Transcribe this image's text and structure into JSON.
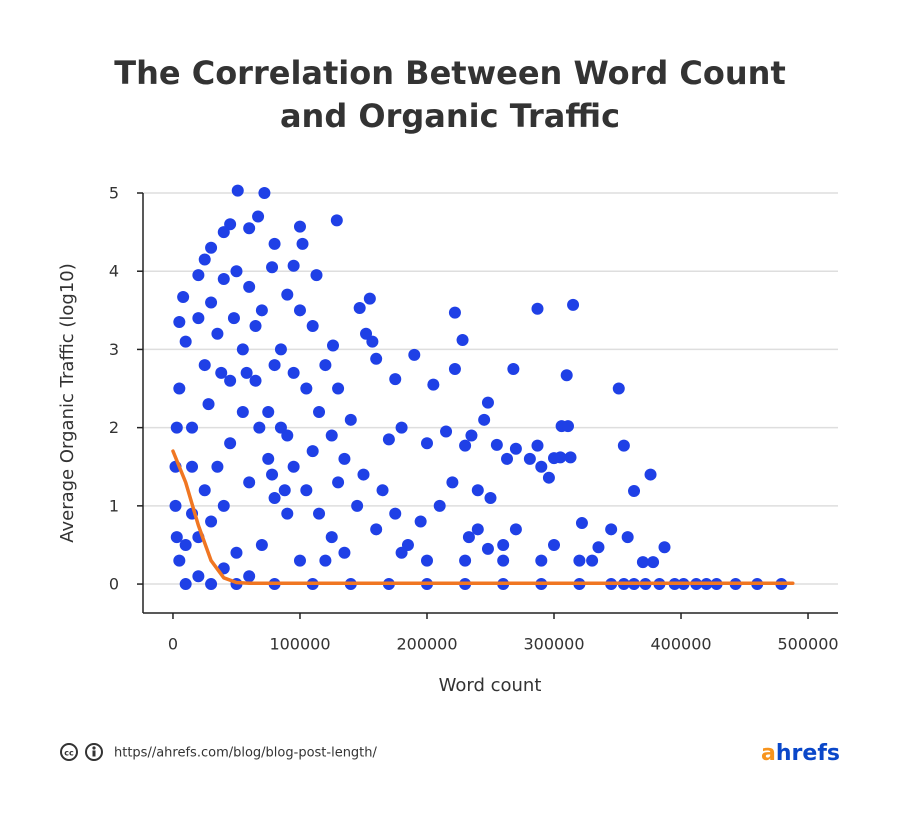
{
  "chart_data": {
    "type": "scatter",
    "title": [
      "The Correlation Between Word Count",
      "and Organic Traffic"
    ],
    "x_label": "Word count",
    "y_label": "Average Organic Traffic (log10)",
    "xlim": [
      -23600,
      523600
    ],
    "ylim": [
      -0.37,
      5
    ],
    "xticks": [
      0,
      100000,
      200000,
      300000,
      400000,
      500000
    ],
    "yticks": [
      0,
      1,
      2,
      3,
      4,
      5
    ],
    "grid": true,
    "series": [
      {
        "type": "scatter",
        "color": "#1f40e6",
        "x": [
          51000,
          72000,
          129000,
          67000,
          100000,
          102000,
          80000,
          95000,
          113000,
          78000,
          60000,
          45000,
          40000,
          30000,
          25000,
          20000,
          8000,
          5000,
          147000,
          155000,
          152000,
          157000,
          126000,
          190000,
          160000,
          222000,
          228000,
          287000,
          315000,
          268000,
          310000,
          351000,
          222000,
          205000,
          248000,
          175000,
          245000,
          255000,
          287000,
          306000,
          311000,
          355000,
          376000,
          363000,
          313000,
          305000,
          300000,
          281000,
          290000,
          296000,
          270000,
          263000,
          235000,
          230000,
          215000,
          200000,
          180000,
          170000,
          140000,
          130000,
          120000,
          110000,
          100000,
          90000,
          85000,
          70000,
          60000,
          50000,
          40000,
          30000,
          20000,
          10000,
          5000,
          3000,
          2000,
          2000,
          3000,
          5000,
          250000,
          240000,
          220000,
          210000,
          195000,
          185000,
          175000,
          165000,
          150000,
          135000,
          125000,
          115000,
          105000,
          95000,
          80000,
          65000,
          55000,
          45000,
          35000,
          25000,
          15000,
          10000,
          20000,
          30000,
          40000,
          60000,
          75000,
          90000,
          110000,
          130000,
          145000,
          160000,
          180000,
          200000,
          230000,
          260000,
          290000,
          320000,
          330000,
          260000,
          270000,
          300000,
          322000,
          335000,
          345000,
          358000,
          387000,
          370000,
          378000,
          240000,
          248000,
          233000,
          10000,
          30000,
          50000,
          80000,
          110000,
          140000,
          170000,
          200000,
          230000,
          260000,
          290000,
          320000,
          345000,
          355000,
          363000,
          372000,
          383000,
          395000,
          402000,
          412000,
          420000,
          428000,
          443000,
          460000,
          479000,
          15000,
          25000,
          35000,
          45000,
          55000,
          65000,
          75000,
          85000,
          95000,
          105000,
          115000,
          125000,
          135000,
          100000,
          70000,
          50000,
          40000,
          20000,
          60000,
          90000,
          120000,
          80000,
          15000,
          28000,
          38000,
          48000,
          58000,
          68000,
          78000,
          88000
        ],
        "values": [
          5.03,
          5.0,
          4.65,
          4.7,
          4.57,
          4.35,
          4.35,
          4.07,
          3.95,
          4.05,
          4.55,
          4.6,
          4.5,
          4.3,
          4.15,
          3.95,
          3.67,
          3.35,
          3.53,
          3.65,
          3.2,
          3.1,
          3.05,
          2.93,
          2.88,
          3.47,
          3.12,
          3.52,
          3.57,
          2.75,
          2.67,
          2.5,
          2.75,
          2.55,
          2.32,
          2.62,
          2.1,
          1.78,
          1.77,
          2.02,
          2.02,
          1.77,
          1.4,
          1.19,
          1.62,
          1.62,
          1.61,
          1.6,
          1.5,
          1.36,
          1.73,
          1.6,
          1.9,
          1.77,
          1.95,
          1.8,
          2.0,
          1.85,
          2.1,
          2.5,
          2.8,
          3.3,
          3.5,
          3.7,
          3.0,
          3.5,
          3.8,
          4.0,
          3.9,
          3.6,
          3.4,
          3.1,
          2.5,
          2.0,
          1.5,
          1.0,
          0.6,
          0.3,
          1.1,
          1.2,
          1.3,
          1.0,
          0.8,
          0.5,
          0.9,
          1.2,
          1.4,
          1.6,
          1.9,
          2.2,
          2.5,
          2.7,
          2.8,
          2.6,
          2.2,
          1.8,
          1.5,
          1.2,
          0.9,
          0.5,
          0.6,
          0.8,
          1.0,
          1.3,
          1.6,
          1.9,
          1.7,
          1.3,
          1.0,
          0.7,
          0.4,
          0.3,
          0.3,
          0.3,
          0.3,
          0.3,
          0.3,
          0.5,
          0.7,
          0.5,
          0.78,
          0.47,
          0.7,
          0.6,
          0.47,
          0.28,
          0.28,
          0.7,
          0.45,
          0.6,
          0,
          0,
          0,
          0,
          0,
          0,
          0,
          0,
          0,
          0,
          0,
          0,
          0,
          0,
          0,
          0,
          0,
          0,
          0,
          0,
          0,
          0,
          0,
          0,
          0,
          2.0,
          2.8,
          3.2,
          2.6,
          3.0,
          3.3,
          2.2,
          2.0,
          1.5,
          1.2,
          0.9,
          0.6,
          0.4,
          0.3,
          0.5,
          0.4,
          0.2,
          0.1,
          0.1,
          0.9,
          0.3,
          1.1,
          1.5,
          2.3,
          2.7,
          3.4,
          2.7,
          2.0,
          1.4,
          1.2
        ]
      },
      {
        "type": "line",
        "color": "#f07622",
        "x": [
          0,
          10000,
          20000,
          30000,
          40000,
          50000,
          60000,
          100000,
          200000,
          300000,
          400000,
          488000
        ],
        "values": [
          1.7,
          1.3,
          0.75,
          0.3,
          0.08,
          0.02,
          0.01,
          0.01,
          0.01,
          0.01,
          0.01,
          0.01
        ]
      }
    ]
  },
  "footer": {
    "source": "https//ahrefs.com/blog/blog-post-length/",
    "logo": [
      "a",
      "hrefs"
    ]
  }
}
